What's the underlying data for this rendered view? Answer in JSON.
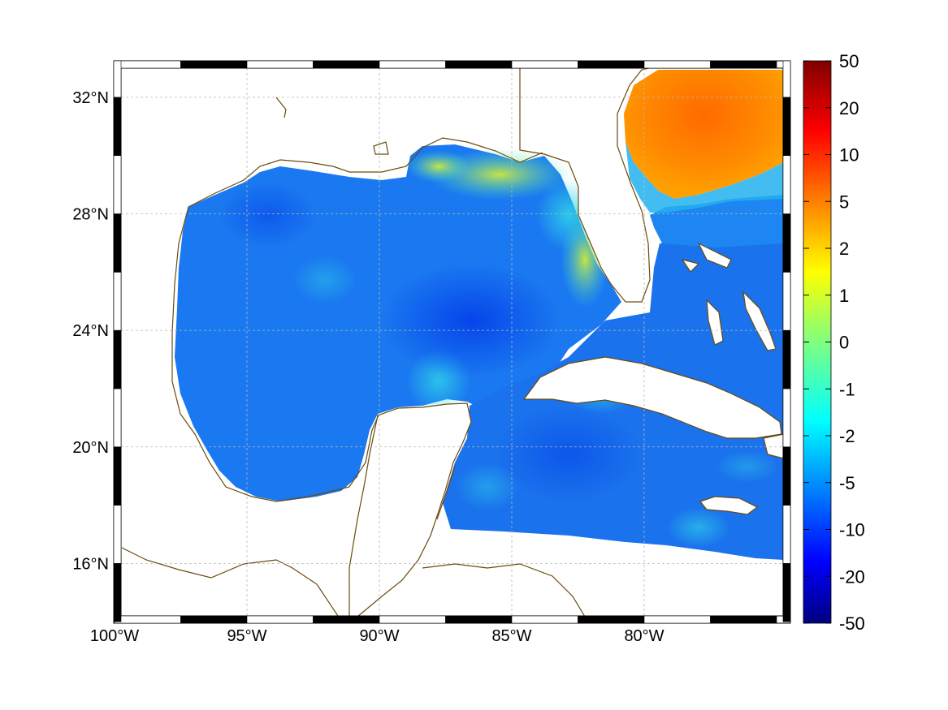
{
  "map": {
    "lon_range": [
      -100,
      -75
    ],
    "lat_range": [
      14.2,
      33
    ],
    "lon_ticks": [
      {
        "value": -100,
        "label": "100°W"
      },
      {
        "value": -95,
        "label": "95°W"
      },
      {
        "value": -90,
        "label": "90°W"
      },
      {
        "value": -85,
        "label": "85°W"
      },
      {
        "value": -80,
        "label": "80°W"
      }
    ],
    "lat_ticks": [
      {
        "value": 32,
        "label": "32°N"
      },
      {
        "value": 28,
        "label": "28°N"
      },
      {
        "value": 24,
        "label": "24°N"
      },
      {
        "value": 20,
        "label": "20°N"
      },
      {
        "value": 16,
        "label": "16°N"
      }
    ],
    "grid": true,
    "coastline_color": "#6b4a0e"
  },
  "colorbar": {
    "ticks": [
      "50",
      "20",
      "10",
      "5",
      "2",
      "1",
      "0",
      "-1",
      "-2",
      "-5",
      "-10",
      "-20",
      "-50"
    ],
    "colormap": "jet",
    "placement": "right"
  }
}
